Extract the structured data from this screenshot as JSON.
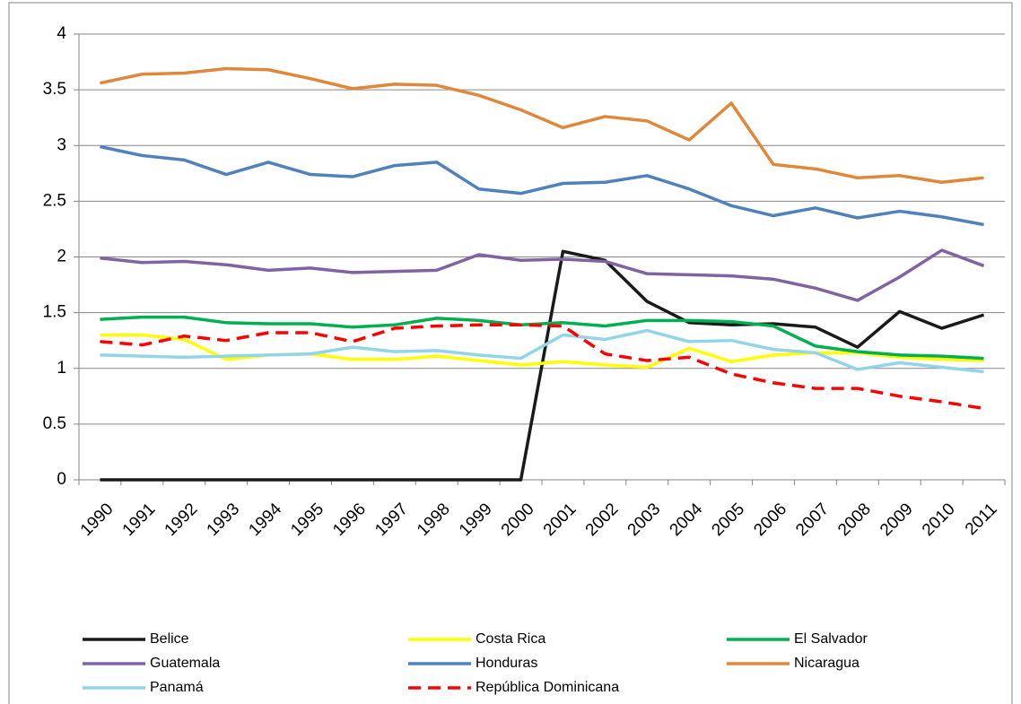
{
  "chart_data": {
    "type": "line",
    "categories": [
      "1990",
      "1991",
      "1992",
      "1993",
      "1994",
      "1995",
      "1996",
      "1997",
      "1998",
      "1999",
      "2000",
      "2001",
      "2002",
      "2003",
      "2004",
      "2005",
      "2006",
      "2007",
      "2008",
      "2009",
      "2010",
      "2011"
    ],
    "series": [
      {
        "name": "Belice",
        "color": "#1a1a1a",
        "values": [
          0,
          0,
          0,
          0,
          0,
          0,
          0,
          0,
          0,
          0,
          0,
          2.05,
          1.97,
          1.6,
          1.41,
          1.39,
          1.4,
          1.37,
          1.19,
          1.51,
          1.36,
          1.48
        ]
      },
      {
        "name": "Costa Rica",
        "color": "#ffff00",
        "values": [
          1.3,
          1.3,
          1.26,
          1.08,
          1.12,
          1.13,
          1.08,
          1.08,
          1.11,
          1.07,
          1.03,
          1.06,
          1.03,
          1.01,
          1.18,
          1.06,
          1.12,
          1.14,
          1.14,
          1.1,
          1.08,
          1.07
        ]
      },
      {
        "name": "El Salvador",
        "color": "#00b050",
        "values": [
          1.44,
          1.46,
          1.46,
          1.41,
          1.4,
          1.4,
          1.37,
          1.39,
          1.45,
          1.43,
          1.39,
          1.41,
          1.38,
          1.43,
          1.43,
          1.42,
          1.38,
          1.2,
          1.15,
          1.12,
          1.11,
          1.09
        ]
      },
      {
        "name": "Guatemala",
        "color": "#8064a2",
        "values": [
          1.99,
          1.95,
          1.96,
          1.93,
          1.88,
          1.9,
          1.86,
          1.87,
          1.88,
          2.02,
          1.97,
          1.98,
          1.96,
          1.85,
          1.84,
          1.83,
          1.8,
          1.72,
          1.61,
          1.82,
          2.06,
          1.92
        ]
      },
      {
        "name": "Honduras",
        "color": "#4f81bd",
        "values": [
          2.99,
          2.91,
          2.87,
          2.74,
          2.85,
          2.74,
          2.72,
          2.82,
          2.85,
          2.61,
          2.57,
          2.66,
          2.67,
          2.73,
          2.61,
          2.46,
          2.37,
          2.44,
          2.35,
          2.41,
          2.36,
          2.29
        ]
      },
      {
        "name": "Nicaragua",
        "color": "#e0883a",
        "values": [
          3.56,
          3.64,
          3.65,
          3.69,
          3.68,
          3.6,
          3.51,
          3.55,
          3.54,
          3.45,
          3.32,
          3.16,
          3.26,
          3.22,
          3.05,
          3.38,
          2.83,
          2.79,
          2.71,
          2.73,
          2.67,
          2.71
        ]
      },
      {
        "name": "Panamá",
        "color": "#93d5e8",
        "values": [
          1.12,
          1.11,
          1.1,
          1.11,
          1.12,
          1.13,
          1.19,
          1.15,
          1.16,
          1.12,
          1.09,
          1.3,
          1.26,
          1.34,
          1.24,
          1.25,
          1.17,
          1.14,
          0.99,
          1.05,
          1.01,
          0.97
        ]
      },
      {
        "name": "República Dominicana",
        "color": "#ff0000",
        "dashed": true,
        "values": [
          1.24,
          1.21,
          1.29,
          1.25,
          1.32,
          1.32,
          1.24,
          1.36,
          1.38,
          1.39,
          1.39,
          1.38,
          1.13,
          1.07,
          1.1,
          0.95,
          0.87,
          0.82,
          0.82,
          0.75,
          0.7,
          0.64
        ]
      }
    ],
    "ylim": [
      0,
      4
    ],
    "yticks": [
      0,
      0.5,
      1,
      1.5,
      2,
      2.5,
      3,
      3.5,
      4
    ],
    "grid": true,
    "legend": "bottom"
  }
}
